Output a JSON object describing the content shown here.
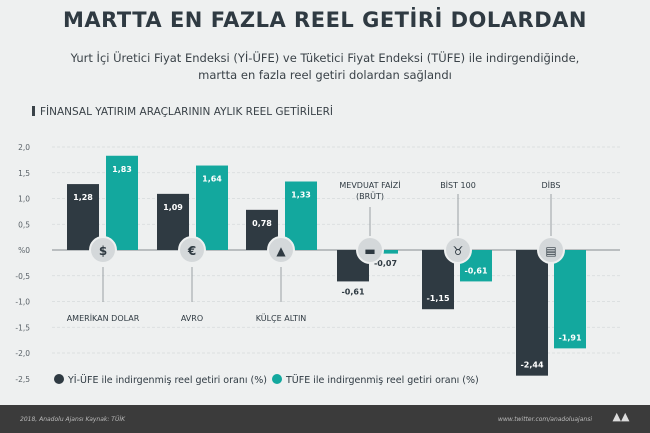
{
  "title": "MARTTA EN FAZLA REEL GETİRİ DOLARDAN",
  "subtitle_line1": "Yurt İçi Üretici Fiyat Endeksi (Yİ-ÜFE) ve Tüketici Fiyat Endeksi (TÜFE) ile indirgendiğinde,",
  "subtitle_line2": "martta en fazla reel getiri dolardan sağlandı",
  "colors": {
    "yiufe": "#2f3a42",
    "tufe": "#13a89e"
  },
  "chart_data": {
    "type": "bar",
    "title": "FİNANSAL YATIRIM ARAÇLARININ AYLIK REEL GETİRİLERİ",
    "categories": [
      "AMERİKAN DOLAR",
      "AVRO",
      "KÜLÇE ALTIN",
      "MEVDUAT FAİZİ (BRÜT)",
      "BİST 100",
      "DİBS"
    ],
    "category_icons": [
      "dollar-icon",
      "euro-icon",
      "gold-bar-icon",
      "money-icon",
      "bull-icon",
      "document-icon"
    ],
    "series": [
      {
        "name": "Yİ-ÜFE ile indirgenmiş reel getiri oranı (%)",
        "values": [
          1.28,
          1.09,
          0.78,
          -0.61,
          -1.15,
          -2.44
        ],
        "labels": [
          "1,28",
          "1,09",
          "0,78",
          "-0,61",
          "-1,15",
          "-2,44"
        ]
      },
      {
        "name": "TÜFE ile indirgenmiş reel getiri oranı (%)",
        "values": [
          1.83,
          1.64,
          1.33,
          -0.07,
          -0.61,
          -1.91
        ],
        "labels": [
          "1,83",
          "1,64",
          "1,33",
          "-0,07",
          "-0,61",
          "-1,91"
        ]
      }
    ],
    "yticks": [
      "2,0",
      "1,5",
      "1,0",
      "0,5",
      "%0",
      "-0,5",
      "-1,0",
      "-1,5",
      "-2,0",
      "-2,5"
    ],
    "ylim": [
      -2.5,
      2.0
    ],
    "grid": true,
    "legend": "bottom-left"
  },
  "footer": {
    "left": "2018, Anadolu Ajansı   Kaynak: TÜİK",
    "right": "www.twitter.com/anadoluajansi",
    "logo": "AA"
  }
}
